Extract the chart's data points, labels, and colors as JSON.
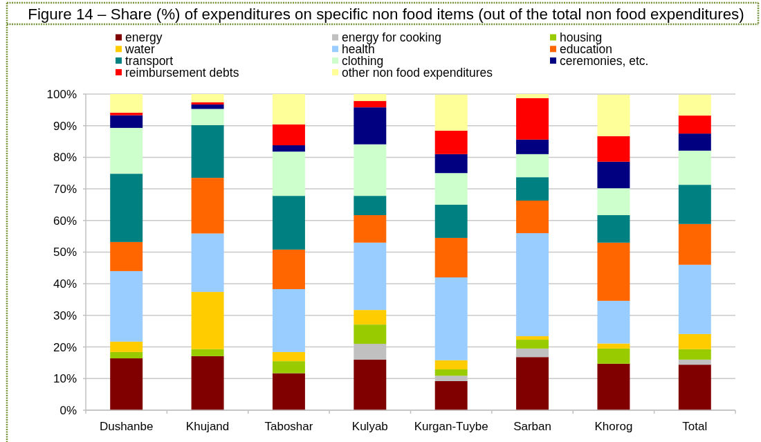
{
  "chart_data": {
    "type": "bar",
    "stacked": true,
    "title": "Figure 14 – Share (%) of expenditures on specific non food items (out of the total non food expenditures)",
    "categories": [
      "Dushanbe",
      "Khujand",
      "Taboshar",
      "Kulyab",
      "Kurgan-Tuybe",
      "Sarban",
      "Khorog",
      "Total"
    ],
    "series": [
      {
        "name": "energy",
        "color": "#800000",
        "values": [
          16.4,
          17.1,
          11.7,
          16.0,
          9.2,
          16.8,
          14.7,
          14.4
        ]
      },
      {
        "name": "energy for cooking",
        "color": "#c0c0c0",
        "values": [
          0,
          0,
          0,
          5.0,
          1.7,
          2.7,
          0,
          1.6
        ]
      },
      {
        "name": "housing",
        "color": "#99cc00",
        "values": [
          2.0,
          2.2,
          3.8,
          6.1,
          2.0,
          2.8,
          4.8,
          3.3
        ]
      },
      {
        "name": "water",
        "color": "#ffcc00",
        "values": [
          3.3,
          18.1,
          2.9,
          4.6,
          2.9,
          1.1,
          1.6,
          4.8
        ]
      },
      {
        "name": "health",
        "color": "#99ccff",
        "values": [
          22.3,
          18.5,
          19.9,
          21.3,
          26.2,
          32.6,
          13.5,
          21.9
        ]
      },
      {
        "name": "education",
        "color": "#ff6600",
        "values": [
          9.2,
          17.6,
          12.5,
          8.7,
          12.5,
          10.3,
          18.4,
          12.9
        ]
      },
      {
        "name": "transport",
        "color": "#008080",
        "values": [
          21.6,
          16.7,
          17.0,
          6.1,
          10.5,
          7.4,
          8.7,
          12.4
        ]
      },
      {
        "name": "clothing",
        "color": "#ccffcc",
        "values": [
          14.5,
          5.1,
          14.0,
          16.3,
          10.0,
          7.3,
          8.5,
          10.8
        ]
      },
      {
        "name": "ceremonies, etc.",
        "color": "#000080",
        "values": [
          4.0,
          1.4,
          2.0,
          11.7,
          6.0,
          4.6,
          8.4,
          5.4
        ]
      },
      {
        "name": "reimbursement debts",
        "color": "#ff0000",
        "values": [
          0.8,
          0.7,
          6.6,
          2.0,
          7.4,
          13.1,
          8.1,
          5.7
        ]
      },
      {
        "name": "other non food expenditures",
        "color": "#ffff99",
        "values": [
          5.9,
          2.6,
          9.6,
          2.2,
          11.4,
          1.3,
          13.1,
          6.6
        ]
      }
    ],
    "ylim": [
      0,
      100
    ],
    "yticks": [
      {
        "value": 0,
        "label": "0%"
      },
      {
        "value": 10,
        "label": "10%"
      },
      {
        "value": 20,
        "label": "20%"
      },
      {
        "value": 30,
        "label": "30%"
      },
      {
        "value": 40,
        "label": "40%"
      },
      {
        "value": 50,
        "label": "50%"
      },
      {
        "value": 60,
        "label": "60%"
      },
      {
        "value": 70,
        "label": "70%"
      },
      {
        "value": 80,
        "label": "80%"
      },
      {
        "value": 90,
        "label": "90%"
      },
      {
        "value": 100,
        "label": "100%"
      }
    ],
    "grid": "y",
    "legend": "top"
  }
}
